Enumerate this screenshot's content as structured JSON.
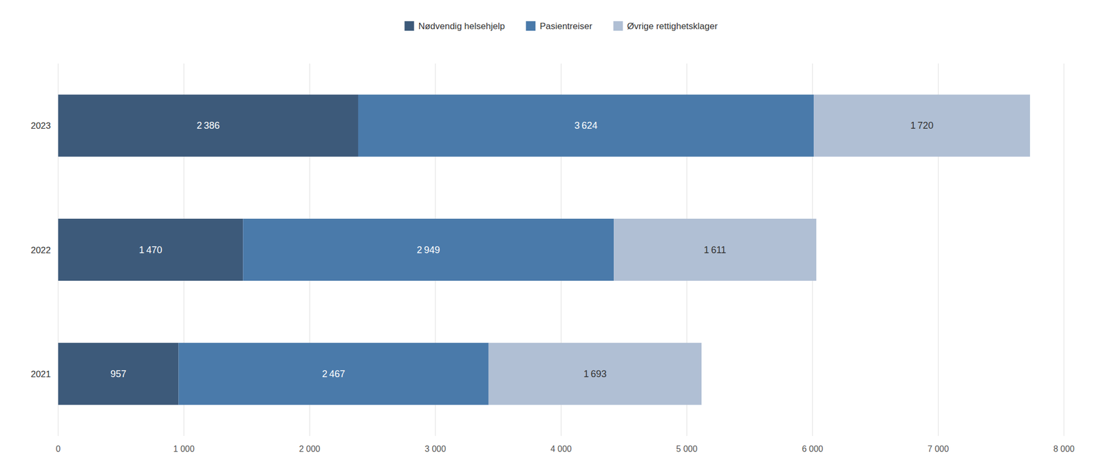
{
  "chart_data": {
    "type": "bar",
    "orientation": "horizontal",
    "stacked": true,
    "categories": [
      "2023",
      "2022",
      "2021"
    ],
    "series": [
      {
        "name": "Nødvendig helsehjelp",
        "color": "#3d5a7a",
        "values": [
          2386,
          1470,
          957
        ],
        "value_labels": [
          "2 386",
          "1 470",
          "957"
        ]
      },
      {
        "name": "Pasientreiser",
        "color": "#4a7aaa",
        "values": [
          3624,
          2949,
          2467
        ],
        "value_labels": [
          "3 624",
          "2 949",
          "2 467"
        ]
      },
      {
        "name": "Øvrige rettighetsklager",
        "color": "#b0bfd4",
        "values": [
          1720,
          1611,
          1693
        ],
        "value_labels": [
          "1 720",
          "1 611",
          "1 693"
        ]
      }
    ],
    "xlim": [
      0,
      8000
    ],
    "xticks": [
      0,
      {
        "value": 1000,
        "label": "1 000"
      },
      {
        "value": 2000,
        "label": "2 000"
      },
      {
        "value": 3000,
        "label": "3 000"
      },
      {
        "value": 4000,
        "label": "4 000"
      },
      {
        "value": 5000,
        "label": "5 000"
      },
      {
        "value": 6000,
        "label": "6 000"
      },
      {
        "value": 7000,
        "label": "7 000"
      },
      {
        "value": 8000,
        "label": "8 000"
      }
    ],
    "grid": true,
    "legend": "top",
    "data_labels": true
  }
}
